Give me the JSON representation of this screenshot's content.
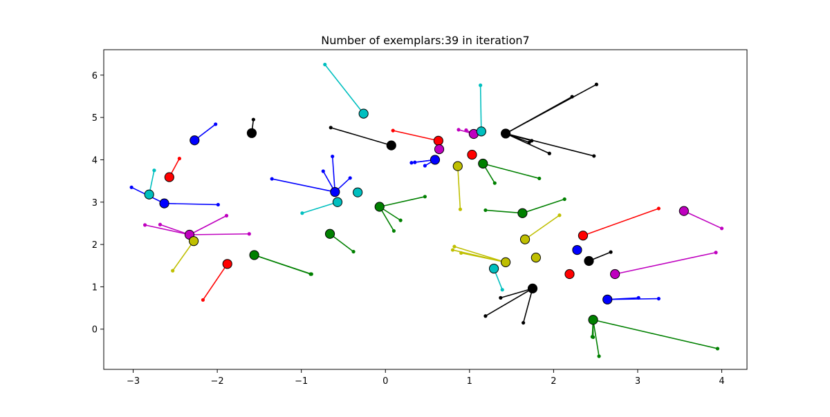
{
  "chart_data": {
    "type": "scatter",
    "title": "Number of exemplars:39 in iteration7",
    "xlabel": "",
    "ylabel": "",
    "xlim": [
      -3.35,
      4.3
    ],
    "ylim": [
      -0.95,
      6.6
    ],
    "x_ticks": [
      -3,
      -2,
      -1,
      0,
      1,
      2,
      3,
      4
    ],
    "y_ticks": [
      0,
      1,
      2,
      3,
      4,
      5,
      6
    ],
    "grid": false,
    "colors": {
      "b": "#0000ff",
      "g": "#008000",
      "r": "#ff0000",
      "c": "#00bfbf",
      "m": "#bf00bf",
      "y": "#bfbf00",
      "k": "#000000"
    },
    "clusters": [
      {
        "color": "b",
        "center": [
          -2.27,
          4.46
        ],
        "members": [
          [
            -2.02,
            4.84
          ]
        ]
      },
      {
        "color": "k",
        "center": [
          -1.59,
          4.63
        ],
        "members": [
          [
            -1.57,
            4.95
          ]
        ]
      },
      {
        "color": "r",
        "center": [
          -2.57,
          3.59
        ],
        "members": [
          [
            -2.45,
            4.03
          ]
        ]
      },
      {
        "color": "c",
        "center": [
          -2.81,
          3.18
        ],
        "members": [
          [
            -2.75,
            3.75
          ]
        ]
      },
      {
        "color": "b",
        "center": [
          -2.63,
          2.97
        ],
        "members": [
          [
            -3.02,
            3.35
          ],
          [
            -1.99,
            2.94
          ]
        ]
      },
      {
        "color": "m",
        "center": [
          -2.33,
          2.23
        ],
        "members": [
          [
            -2.86,
            2.46
          ],
          [
            -2.68,
            2.47
          ],
          [
            -1.89,
            2.68
          ],
          [
            -1.62,
            2.25
          ]
        ]
      },
      {
        "color": "y",
        "center": [
          -2.28,
          2.08
        ],
        "members": [
          [
            -2.53,
            1.38
          ]
        ]
      },
      {
        "color": "r",
        "center": [
          -1.88,
          1.54
        ],
        "members": [
          [
            -2.17,
            0.69
          ]
        ]
      },
      {
        "color": "g",
        "center": [
          -1.56,
          1.75
        ],
        "members": [
          [
            -0.88,
            1.3
          ],
          [
            -0.89,
            1.3
          ]
        ]
      },
      {
        "color": "c",
        "center": [
          -0.26,
          5.09
        ],
        "members": [
          [
            -0.72,
            6.25
          ]
        ]
      },
      {
        "color": "k",
        "center": [
          0.07,
          4.34
        ],
        "members": [
          [
            -0.65,
            4.76
          ]
        ]
      },
      {
        "color": "b",
        "center": [
          -0.6,
          3.24
        ],
        "members": [
          [
            -1.35,
            3.55
          ],
          [
            -0.74,
            3.73
          ],
          [
            -0.63,
            4.08
          ],
          [
            -0.42,
            3.57
          ]
        ]
      },
      {
        "color": "c",
        "center": [
          -0.57,
          3.0
        ],
        "members": [
          [
            -0.99,
            2.74
          ]
        ]
      },
      {
        "color": "c",
        "center": [
          -0.33,
          3.23
        ],
        "members": []
      },
      {
        "color": "g",
        "center": [
          -0.66,
          2.25
        ],
        "members": [
          [
            -0.38,
            1.83
          ]
        ]
      },
      {
        "color": "g",
        "center": [
          -0.07,
          2.89
        ],
        "members": [
          [
            0.47,
            3.13
          ],
          [
            0.18,
            2.57
          ],
          [
            0.1,
            2.32
          ]
        ]
      },
      {
        "color": "r",
        "center": [
          0.63,
          4.45
        ],
        "members": [
          [
            0.09,
            4.69
          ]
        ]
      },
      {
        "color": "m",
        "center": [
          0.64,
          4.25
        ],
        "members": []
      },
      {
        "color": "b",
        "center": [
          0.59,
          4.0
        ],
        "members": [
          [
            0.31,
            3.93
          ],
          [
            0.35,
            3.94
          ],
          [
            0.47,
            3.86
          ]
        ]
      },
      {
        "color": "y",
        "center": [
          0.86,
          3.85
        ],
        "members": [
          [
            0.89,
            2.83
          ]
        ]
      },
      {
        "color": "m",
        "center": [
          1.05,
          4.61
        ],
        "members": [
          [
            0.87,
            4.71
          ],
          [
            0.96,
            4.7
          ]
        ]
      },
      {
        "color": "c",
        "center": [
          1.14,
          4.67
        ],
        "members": [
          [
            1.13,
            5.76
          ]
        ]
      },
      {
        "color": "r",
        "center": [
          1.03,
          4.12
        ],
        "members": []
      },
      {
        "color": "g",
        "center": [
          1.16,
          3.91
        ],
        "members": [
          [
            1.3,
            3.45
          ],
          [
            1.83,
            3.56
          ]
        ]
      },
      {
        "color": "k",
        "center": [
          1.43,
          4.62
        ],
        "members": [
          [
            2.22,
            5.49
          ],
          [
            2.51,
            5.78
          ],
          [
            1.74,
            4.45
          ],
          [
            1.71,
            4.41
          ],
          [
            1.95,
            4.15
          ],
          [
            2.48,
            4.09
          ]
        ]
      },
      {
        "color": "g",
        "center": [
          1.63,
          2.74
        ],
        "members": [
          [
            1.19,
            2.81
          ],
          [
            2.13,
            3.07
          ]
        ]
      },
      {
        "color": "y",
        "center": [
          1.66,
          2.12
        ],
        "members": [
          [
            2.07,
            2.69
          ]
        ]
      },
      {
        "color": "y",
        "center": [
          1.43,
          1.58
        ],
        "members": [
          [
            0.8,
            1.87
          ],
          [
            0.82,
            1.95
          ],
          [
            0.9,
            1.8
          ]
        ]
      },
      {
        "color": "y",
        "center": [
          1.79,
          1.69
        ],
        "members": []
      },
      {
        "color": "c",
        "center": [
          1.29,
          1.43
        ],
        "members": [
          [
            1.39,
            0.93
          ]
        ]
      },
      {
        "color": "k",
        "center": [
          1.75,
          0.96
        ],
        "members": [
          [
            1.37,
            0.74
          ],
          [
            1.19,
            0.31
          ],
          [
            1.64,
            0.15
          ]
        ]
      },
      {
        "color": "r",
        "center": [
          2.35,
          2.21
        ],
        "members": [
          [
            3.25,
            2.85
          ]
        ]
      },
      {
        "color": "b",
        "center": [
          2.28,
          1.87
        ],
        "members": []
      },
      {
        "color": "k",
        "center": [
          2.42,
          1.61
        ],
        "members": [
          [
            2.68,
            1.82
          ]
        ]
      },
      {
        "color": "r",
        "center": [
          2.19,
          1.3
        ],
        "members": []
      },
      {
        "color": "m",
        "center": [
          2.73,
          1.3
        ],
        "members": [
          [
            3.93,
            1.81
          ]
        ]
      },
      {
        "color": "m",
        "center": [
          3.55,
          2.79
        ],
        "members": [
          [
            4.0,
            2.38
          ]
        ]
      },
      {
        "color": "b",
        "center": [
          2.64,
          0.7
        ],
        "members": [
          [
            3.01,
            0.74
          ],
          [
            3.25,
            0.72
          ]
        ]
      },
      {
        "color": "g",
        "center": [
          2.47,
          0.22
        ],
        "members": [
          [
            2.46,
            -0.18
          ],
          [
            2.47,
            -0.19
          ],
          [
            2.54,
            -0.64
          ],
          [
            3.95,
            -0.46
          ]
        ]
      }
    ]
  }
}
